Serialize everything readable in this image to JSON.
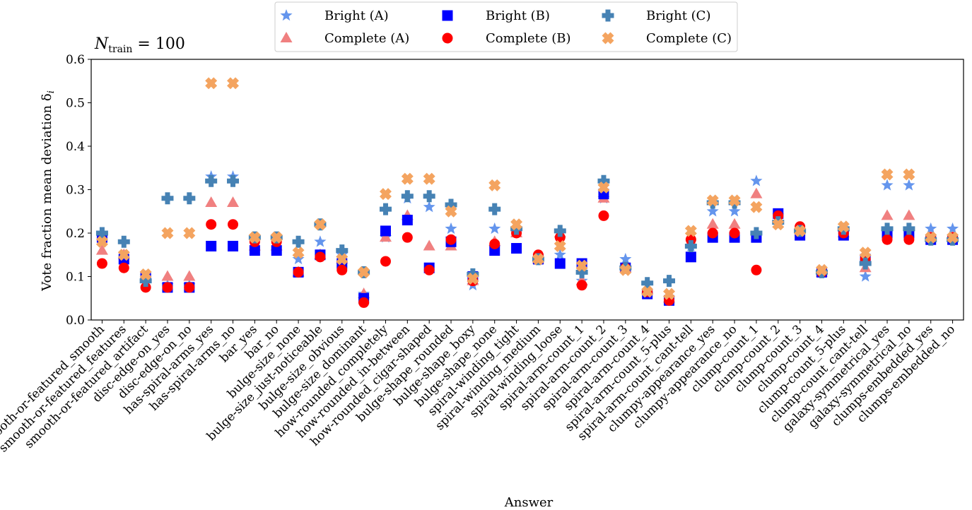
{
  "chart_data": {
    "type": "scatter",
    "annotation": {
      "main": "N",
      "sub": "train",
      "rest": " = 100"
    },
    "xlabel": "Answer",
    "ylabel": "Vote fraction mean deviation δ",
    "ylabel_sub": "i",
    "ylim": [
      0.0,
      0.6
    ],
    "yticks": [
      "0.0",
      "0.1",
      "0.2",
      "0.3",
      "0.4",
      "0.5",
      "0.6"
    ],
    "grid": false,
    "legend_position": "top-center",
    "categories": [
      "smooth-or-featured_smooth",
      "smooth-or-featured_features",
      "smooth-or-featured_artifact",
      "disc-edge-on_yes",
      "disc-edge-on_no",
      "has-spiral-arms_yes",
      "has-spiral-arms_no",
      "bar_yes",
      "bar_no",
      "bulge-size_none",
      "bulge-size_just-noticeable",
      "bulge-size_obvious",
      "bulge-size_dominant",
      "how-rounded_completely",
      "how-rounded_in-between",
      "how-rounded_cigar-shaped",
      "bulge-shape_rounded",
      "bulge-shape_boxy",
      "bulge-shape_none",
      "spiral-winding_tight",
      "spiral-winding_medium",
      "spiral-winding_loose",
      "spiral-arm-count_1",
      "spiral-arm-count_2",
      "spiral-arm-count_3",
      "spiral-arm-count_4",
      "spiral-arm-count_5-plus",
      "spiral-arm-count_cant-tell",
      "clumpy-appearance_yes",
      "clumpy-appearance_no",
      "clump-count_1",
      "clump-count_2",
      "clump-count_3",
      "clump-count_4",
      "clump-count_5-plus",
      "clump-count_cant-tell",
      "galaxy-symmetrical_yes",
      "galaxy-symmetrical_no",
      "clumps-embedded_yes",
      "clumps-embedded_no"
    ],
    "series": [
      {
        "name": "Bright (A)",
        "marker": "star",
        "color": "#6495ed",
        "values": [
          0.19,
          0.14,
          0.1,
          0.08,
          0.08,
          0.33,
          0.33,
          0.18,
          0.18,
          0.14,
          0.18,
          0.15,
          0.06,
          0.19,
          0.28,
          0.26,
          0.21,
          0.08,
          0.21,
          0.21,
          0.14,
          0.15,
          0.09,
          0.28,
          0.14,
          0.06,
          0.05,
          0.17,
          0.25,
          0.25,
          0.32,
          0.24,
          0.2,
          0.11,
          0.2,
          0.1,
          0.31,
          0.31,
          0.21,
          0.21
        ]
      },
      {
        "name": "Complete (A)",
        "marker": "triangle",
        "color": "#f08080",
        "values": [
          0.16,
          0.15,
          0.1,
          0.1,
          0.1,
          0.27,
          0.27,
          0.17,
          0.17,
          0.11,
          0.15,
          0.14,
          0.06,
          0.19,
          0.24,
          0.17,
          0.17,
          0.09,
          0.18,
          0.2,
          0.14,
          0.2,
          0.09,
          0.28,
          0.12,
          0.07,
          0.05,
          0.18,
          0.22,
          0.22,
          0.29,
          0.23,
          0.21,
          0.11,
          0.2,
          0.12,
          0.24,
          0.24,
          0.19,
          0.19
        ]
      },
      {
        "name": "Bright (B)",
        "marker": "square",
        "color": "#0000ff",
        "values": [
          0.19,
          0.14,
          0.1,
          0.075,
          0.075,
          0.17,
          0.17,
          0.16,
          0.16,
          0.11,
          0.15,
          0.13,
          0.05,
          0.205,
          0.23,
          0.12,
          0.18,
          0.1,
          0.16,
          0.165,
          0.14,
          0.13,
          0.13,
          0.29,
          0.12,
          0.06,
          0.045,
          0.145,
          0.19,
          0.19,
          0.19,
          0.245,
          0.195,
          0.11,
          0.195,
          0.14,
          0.2,
          0.2,
          0.185,
          0.185
        ]
      },
      {
        "name": "Complete (B)",
        "marker": "circle",
        "color": "#ff0000",
        "values": [
          0.13,
          0.12,
          0.075,
          0.075,
          0.075,
          0.22,
          0.22,
          0.18,
          0.18,
          0.11,
          0.145,
          0.115,
          0.04,
          0.135,
          0.19,
          0.115,
          0.185,
          0.09,
          0.175,
          0.2,
          0.15,
          0.19,
          0.08,
          0.24,
          0.12,
          0.065,
          0.045,
          0.185,
          0.2,
          0.2,
          0.115,
          0.24,
          0.215,
          0.11,
          0.2,
          0.14,
          0.185,
          0.185,
          0.19,
          0.19
        ]
      },
      {
        "name": "Bright (C)",
        "marker": "plus",
        "color": "#4682b4",
        "values": [
          0.2,
          0.18,
          0.09,
          0.28,
          0.28,
          0.32,
          0.32,
          0.19,
          0.19,
          0.18,
          0.22,
          0.16,
          0.11,
          0.255,
          0.285,
          0.285,
          0.265,
          0.105,
          0.255,
          0.21,
          0.14,
          0.205,
          0.11,
          0.32,
          0.12,
          0.085,
          0.09,
          0.17,
          0.27,
          0.27,
          0.2,
          0.225,
          0.205,
          0.11,
          0.21,
          0.13,
          0.21,
          0.21,
          0.185,
          0.185
        ]
      },
      {
        "name": "Complete (C)",
        "marker": "x",
        "color": "#f4a460",
        "values": [
          0.18,
          0.15,
          0.105,
          0.2,
          0.2,
          0.545,
          0.545,
          0.19,
          0.19,
          0.155,
          0.22,
          0.14,
          0.11,
          0.29,
          0.325,
          0.325,
          0.25,
          0.095,
          0.31,
          0.22,
          0.14,
          0.17,
          0.125,
          0.305,
          0.115,
          0.065,
          0.06,
          0.205,
          0.275,
          0.275,
          0.26,
          0.22,
          0.205,
          0.115,
          0.215,
          0.155,
          0.335,
          0.335,
          0.19,
          0.19
        ]
      }
    ]
  }
}
